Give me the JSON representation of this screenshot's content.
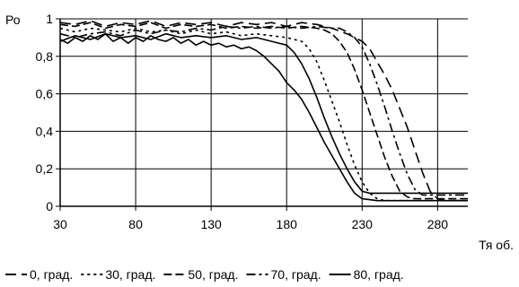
{
  "chart_data": {
    "type": "line",
    "ylabel": "Ро",
    "xlabel": "Тя об.",
    "xlim": [
      30,
      300
    ],
    "ylim": [
      0,
      1
    ],
    "grid": true,
    "legend_placement": "bottom",
    "x_ticks": [
      30,
      80,
      130,
      180,
      230,
      280
    ],
    "x_tick_labels": [
      "30",
      "80",
      "130",
      "180",
      "230",
      "280"
    ],
    "y_ticks": [
      0,
      0.2,
      0.4,
      0.6,
      0.8,
      1
    ],
    "y_tick_labels": [
      "0",
      "0,2",
      "0,4",
      "0,6",
      "0,8",
      "1"
    ],
    "series": [
      {
        "name": "0, град.",
        "dash": "long-dash",
        "x": [
          30,
          40,
          50,
          60,
          70,
          80,
          90,
          100,
          110,
          120,
          130,
          140,
          150,
          160,
          170,
          180,
          190,
          200,
          210,
          220,
          230,
          235,
          240,
          245,
          250,
          255,
          260,
          265,
          270,
          275,
          280,
          285,
          290,
          300
        ],
        "y": [
          0.98,
          0.97,
          0.99,
          0.96,
          0.98,
          0.97,
          0.99,
          0.96,
          0.98,
          0.97,
          0.98,
          0.96,
          0.98,
          0.97,
          0.98,
          0.96,
          0.98,
          0.97,
          0.95,
          0.92,
          0.88,
          0.84,
          0.77,
          0.7,
          0.62,
          0.52,
          0.42,
          0.3,
          0.18,
          0.08,
          0.04,
          0.03,
          0.03,
          0.03
        ]
      },
      {
        "name": "30, град.",
        "dash": "dotted",
        "x": [
          30,
          40,
          50,
          60,
          70,
          80,
          90,
          100,
          110,
          120,
          130,
          140,
          150,
          160,
          170,
          180,
          190,
          195,
          200,
          205,
          210,
          215,
          220,
          225,
          230,
          235,
          240,
          245,
          250,
          260,
          280,
          300
        ],
        "y": [
          0.95,
          0.93,
          0.95,
          0.94,
          0.93,
          0.95,
          0.93,
          0.94,
          0.92,
          0.94,
          0.92,
          0.93,
          0.91,
          0.92,
          0.91,
          0.9,
          0.88,
          0.84,
          0.77,
          0.67,
          0.56,
          0.45,
          0.33,
          0.22,
          0.13,
          0.07,
          0.04,
          0.03,
          0.03,
          0.03,
          0.03,
          0.03
        ]
      },
      {
        "name": "50, град.",
        "dash": "dash",
        "x": [
          30,
          40,
          50,
          60,
          70,
          80,
          90,
          100,
          110,
          120,
          130,
          140,
          150,
          160,
          170,
          180,
          190,
          200,
          205,
          210,
          215,
          220,
          225,
          230,
          235,
          240,
          245,
          250,
          255,
          260,
          265,
          270,
          280,
          300
        ],
        "y": [
          0.97,
          0.96,
          0.98,
          0.95,
          0.97,
          0.96,
          0.98,
          0.95,
          0.97,
          0.96,
          0.97,
          0.95,
          0.96,
          0.95,
          0.96,
          0.95,
          0.96,
          0.95,
          0.94,
          0.92,
          0.88,
          0.82,
          0.73,
          0.62,
          0.5,
          0.38,
          0.26,
          0.16,
          0.08,
          0.05,
          0.04,
          0.04,
          0.04,
          0.04
        ]
      },
      {
        "name": "70, град.",
        "dash": "dash-dot",
        "x": [
          30,
          40,
          50,
          60,
          70,
          80,
          90,
          100,
          110,
          120,
          130,
          140,
          150,
          160,
          170,
          180,
          190,
          200,
          210,
          215,
          220,
          225,
          230,
          235,
          240,
          245,
          250,
          255,
          260,
          265,
          270,
          280,
          290,
          300
        ],
        "y": [
          0.92,
          0.9,
          0.92,
          0.93,
          0.91,
          0.94,
          0.92,
          0.94,
          0.93,
          0.95,
          0.94,
          0.96,
          0.95,
          0.96,
          0.95,
          0.96,
          0.95,
          0.96,
          0.95,
          0.95,
          0.93,
          0.9,
          0.85,
          0.76,
          0.65,
          0.53,
          0.4,
          0.28,
          0.17,
          0.09,
          0.06,
          0.06,
          0.06,
          0.06
        ]
      },
      {
        "name": "80, град.",
        "dash": "solid",
        "x": [
          30,
          35,
          40,
          45,
          50,
          55,
          60,
          65,
          70,
          75,
          80,
          85,
          90,
          95,
          100,
          105,
          110,
          115,
          120,
          125,
          130,
          135,
          140,
          145,
          150,
          155,
          160,
          165,
          170,
          175,
          180,
          185,
          190,
          195,
          200,
          205,
          210,
          215,
          220,
          225,
          230,
          240,
          260,
          280,
          300
        ],
        "y": [
          0.89,
          0.87,
          0.9,
          0.88,
          0.91,
          0.89,
          0.92,
          0.88,
          0.9,
          0.87,
          0.9,
          0.88,
          0.91,
          0.89,
          0.88,
          0.9,
          0.87,
          0.89,
          0.86,
          0.88,
          0.86,
          0.87,
          0.85,
          0.86,
          0.84,
          0.85,
          0.83,
          0.8,
          0.76,
          0.72,
          0.66,
          0.62,
          0.57,
          0.5,
          0.42,
          0.34,
          0.27,
          0.2,
          0.13,
          0.07,
          0.04,
          0.03,
          0.03,
          0.03,
          0.03
        ]
      },
      {
        "name": "",
        "dash": "solid",
        "x": [
          30,
          40,
          50,
          60,
          70,
          80,
          90,
          100,
          110,
          120,
          130,
          140,
          150,
          160,
          170,
          180,
          185,
          190,
          195,
          200,
          205,
          210,
          215,
          220,
          225,
          230,
          235,
          240,
          250,
          270,
          300
        ],
        "y": [
          0.88,
          0.91,
          0.89,
          0.92,
          0.9,
          0.91,
          0.89,
          0.92,
          0.9,
          0.91,
          0.9,
          0.91,
          0.89,
          0.9,
          0.88,
          0.86,
          0.82,
          0.76,
          0.68,
          0.58,
          0.47,
          0.37,
          0.28,
          0.2,
          0.13,
          0.08,
          0.07,
          0.07,
          0.07,
          0.07,
          0.07
        ]
      }
    ]
  }
}
